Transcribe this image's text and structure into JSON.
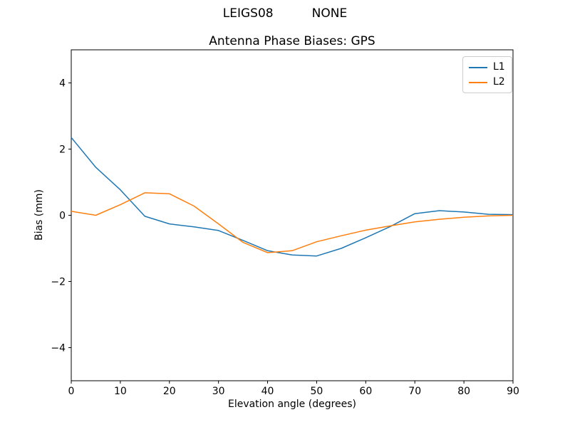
{
  "sup_title": "LEIGS08          NONE",
  "chart_data": {
    "type": "line",
    "title": "Antenna Phase Biases: GPS",
    "xlabel": "Elevation angle (degrees)",
    "ylabel": "Bias (mm)",
    "xlim": [
      0,
      90
    ],
    "ylim": [
      -5,
      5
    ],
    "xticks": [
      0,
      10,
      20,
      30,
      40,
      50,
      60,
      70,
      80,
      90
    ],
    "yticks": [
      -4,
      -2,
      0,
      2,
      4
    ],
    "grid": false,
    "legend_position": "upper right",
    "x": [
      0,
      5,
      10,
      15,
      20,
      25,
      30,
      35,
      40,
      45,
      50,
      55,
      60,
      65,
      70,
      75,
      80,
      85,
      90
    ],
    "series": [
      {
        "name": "L1",
        "color": "#1f77b4",
        "values": [
          2.35,
          1.45,
          0.77,
          -0.03,
          -0.26,
          -0.35,
          -0.46,
          -0.76,
          -1.07,
          -1.2,
          -1.23,
          -1.0,
          -0.68,
          -0.34,
          0.05,
          0.14,
          0.1,
          0.03,
          0.02
        ]
      },
      {
        "name": "L2",
        "color": "#ff7f0e",
        "values": [
          0.12,
          0.0,
          0.32,
          0.68,
          0.65,
          0.28,
          -0.26,
          -0.82,
          -1.13,
          -1.07,
          -0.8,
          -0.62,
          -0.45,
          -0.32,
          -0.2,
          -0.12,
          -0.06,
          -0.02,
          0.0
        ]
      }
    ]
  }
}
